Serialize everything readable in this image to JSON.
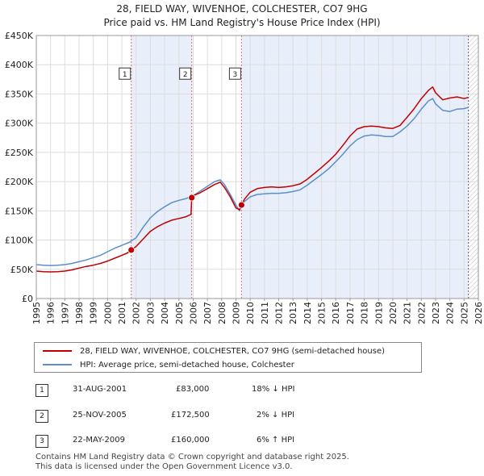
{
  "header": {
    "title": "28, FIELD WAY, WIVENHOE, COLCHESTER, CO7 9HG",
    "subtitle": "Price paid vs. HM Land Registry's House Price Index (HPI)"
  },
  "chart_data": {
    "type": "line",
    "x_range": [
      1995,
      2026
    ],
    "ylim": [
      0,
      450000
    ],
    "y_ticks": [
      0,
      50000,
      100000,
      150000,
      200000,
      250000,
      300000,
      350000,
      400000,
      450000
    ],
    "y_tick_labels": [
      "£0",
      "£50K",
      "£100K",
      "£150K",
      "£200K",
      "£250K",
      "£300K",
      "£350K",
      "£400K",
      "£450K"
    ],
    "x_tick_labels": [
      "1995",
      "1996",
      "1997",
      "1998",
      "1999",
      "2000",
      "2001",
      "2002",
      "2003",
      "2004",
      "2005",
      "2006",
      "2007",
      "2008",
      "2009",
      "2010",
      "2011",
      "2012",
      "2013",
      "2014",
      "2015",
      "2016",
      "2017",
      "2018",
      "2019",
      "2020",
      "2021",
      "2022",
      "2023",
      "2024",
      "2025",
      "2026"
    ],
    "grid": true,
    "colors": {
      "property": "#c00000",
      "hpi": "#5b8fc9",
      "shade": "#e8eefa",
      "vline": "#e07070"
    },
    "series": [
      {
        "name": "28, FIELD WAY, WIVENHOE, COLCHESTER, CO7 9HG (semi-detached house)",
        "x": [
          1995.0,
          1995.5,
          1996.0,
          1996.5,
          1997.0,
          1997.5,
          1998.0,
          1998.5,
          1999.0,
          1999.5,
          2000.0,
          2000.5,
          2001.0,
          2001.4,
          2001.66,
          2002.0,
          2002.5,
          2003.0,
          2003.5,
          2004.0,
          2004.5,
          2005.0,
          2005.5,
          2005.85,
          2005.9,
          2006.0,
          2006.5,
          2007.0,
          2007.5,
          2007.9,
          2008.2,
          2008.6,
          2009.0,
          2009.25,
          2009.39,
          2009.6,
          2010.0,
          2010.5,
          2011.0,
          2011.5,
          2012.0,
          2012.5,
          2013.0,
          2013.5,
          2014.0,
          2014.5,
          2015.0,
          2015.5,
          2016.0,
          2016.5,
          2017.0,
          2017.5,
          2018.0,
          2018.5,
          2019.0,
          2019.5,
          2020.0,
          2020.5,
          2021.0,
          2021.5,
          2022.0,
          2022.5,
          2022.8,
          2023.0,
          2023.5,
          2024.0,
          2024.5,
          2025.0,
          2025.3
        ],
        "values": [
          47000,
          46000,
          45500,
          46000,
          47000,
          49000,
          52000,
          55000,
          57000,
          60000,
          64000,
          69000,
          74000,
          78000,
          83000,
          89000,
          102000,
          115000,
          123000,
          129000,
          134000,
          137000,
          140000,
          144000,
          172500,
          176000,
          181000,
          188000,
          195000,
          199000,
          190000,
          174000,
          155000,
          152000,
          160000,
          170000,
          182000,
          188000,
          190000,
          191000,
          190000,
          191000,
          193000,
          196000,
          204000,
          214000,
          224000,
          235000,
          247000,
          262000,
          278000,
          290000,
          294000,
          295000,
          294000,
          292000,
          291000,
          296000,
          310000,
          325000,
          342000,
          356000,
          362000,
          352000,
          340000,
          343000,
          345000,
          342000,
          344000
        ]
      },
      {
        "name": "HPI: Average price, semi-detached house, Colchester",
        "x": [
          1995.0,
          1995.5,
          1996.0,
          1996.5,
          1997.0,
          1997.5,
          1998.0,
          1998.5,
          1999.0,
          1999.5,
          2000.0,
          2000.5,
          2001.0,
          2001.5,
          2002.0,
          2002.5,
          2003.0,
          2003.5,
          2004.0,
          2004.5,
          2005.0,
          2005.5,
          2006.0,
          2006.5,
          2007.0,
          2007.5,
          2007.9,
          2008.2,
          2008.6,
          2009.0,
          2009.25,
          2009.5,
          2010.0,
          2010.5,
          2011.0,
          2011.5,
          2012.0,
          2012.5,
          2013.0,
          2013.5,
          2014.0,
          2014.5,
          2015.0,
          2015.5,
          2016.0,
          2016.5,
          2017.0,
          2017.5,
          2018.0,
          2018.5,
          2019.0,
          2019.5,
          2020.0,
          2020.5,
          2021.0,
          2021.5,
          2022.0,
          2022.5,
          2022.8,
          2023.0,
          2023.5,
          2024.0,
          2024.5,
          2025.0,
          2025.3
        ],
        "values": [
          58000,
          57000,
          56500,
          57000,
          58000,
          60000,
          63000,
          66000,
          70000,
          74000,
          80000,
          86000,
          91000,
          96000,
          104000,
          122000,
          138000,
          149000,
          157000,
          164000,
          168000,
          171000,
          176000,
          184000,
          192000,
          200000,
          203000,
          195000,
          178000,
          160000,
          150000,
          164000,
          174000,
          178000,
          179000,
          180000,
          180000,
          181000,
          183000,
          186000,
          194000,
          203000,
          212000,
          222000,
          234000,
          247000,
          261000,
          272000,
          278000,
          280000,
          279000,
          277000,
          277000,
          285000,
          295000,
          308000,
          324000,
          338000,
          342000,
          333000,
          322000,
          320000,
          324000,
          325000,
          327000
        ]
      }
    ],
    "sales": [
      {
        "label": "1",
        "x": 2001.66,
        "value": 83000
      },
      {
        "label": "2",
        "x": 2005.9,
        "value": 172500
      },
      {
        "label": "3",
        "x": 2009.39,
        "value": 160000
      }
    ],
    "shaded_ranges": [
      [
        2001.66,
        2005.9
      ],
      [
        2009.39,
        2025.3
      ]
    ],
    "hatched_from": 2025.3
  },
  "legend": {
    "property_label": "28, FIELD WAY, WIVENHOE, COLCHESTER, CO7 9HG (semi-detached house)",
    "hpi_label": "HPI: Average price, semi-detached house, Colchester"
  },
  "transactions": [
    {
      "num": "1",
      "date": "31-AUG-2001",
      "price": "£83,000",
      "hpi": "18% ↓ HPI"
    },
    {
      "num": "2",
      "date": "25-NOV-2005",
      "price": "£172,500",
      "hpi": "2% ↓ HPI"
    },
    {
      "num": "3",
      "date": "22-MAY-2009",
      "price": "£160,000",
      "hpi": "6% ↑ HPI"
    }
  ],
  "footer": {
    "line1": "Contains HM Land Registry data © Crown copyright and database right 2025.",
    "line2": "This data is licensed under the Open Government Licence v3.0."
  }
}
